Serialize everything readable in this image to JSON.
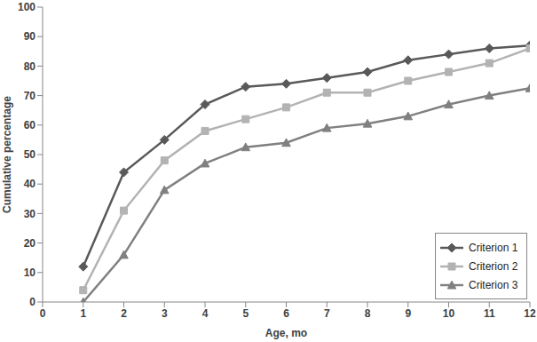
{
  "chart_data": {
    "type": "line",
    "xlabel": "Age, mo",
    "ylabel": "Cumulative percentage",
    "x": [
      1,
      2,
      3,
      4,
      5,
      6,
      7,
      8,
      9,
      10,
      11,
      12
    ],
    "xlim": [
      0,
      12
    ],
    "xticks": [
      0,
      1,
      2,
      3,
      4,
      5,
      6,
      7,
      8,
      9,
      10,
      11,
      12
    ],
    "ylim": [
      0,
      100
    ],
    "yticks": [
      0,
      10,
      20,
      30,
      40,
      50,
      60,
      70,
      80,
      90,
      100
    ],
    "grid": false,
    "legend": "lower right",
    "series": [
      {
        "name": "Criterion 1",
        "color": "#595959",
        "marker": "diamond",
        "line_style": "solid",
        "values": [
          12,
          44,
          55,
          67,
          73,
          74,
          76,
          78,
          82,
          84,
          86,
          87
        ]
      },
      {
        "name": "Criterion 2",
        "color": "#b3b3b3",
        "marker": "square",
        "line_style": "solid",
        "values": [
          4,
          31,
          48,
          58,
          62,
          66,
          71,
          71,
          75,
          78,
          81,
          86
        ]
      },
      {
        "name": "Criterion 3",
        "color": "#808080",
        "marker": "triangle",
        "line_style": "solid",
        "values": [
          0,
          16,
          38,
          47,
          52.5,
          54,
          59,
          60.5,
          63,
          67,
          70,
          72.5
        ]
      }
    ]
  }
}
